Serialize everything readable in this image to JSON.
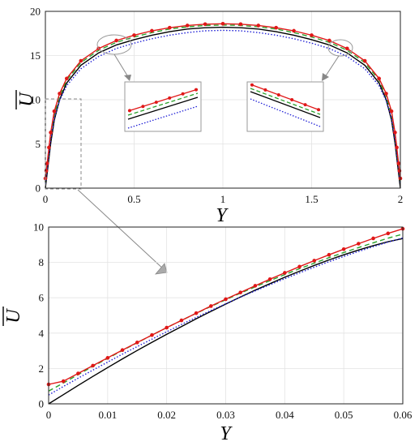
{
  "figure": {
    "top": {
      "type": "line",
      "xlabel": "Y",
      "ylabel": "U",
      "xlim": [
        0,
        2
      ],
      "ylim": [
        0,
        20
      ],
      "xticks": [
        "0",
        "0.5",
        "1",
        "1.5",
        "2"
      ],
      "yticks": [
        "0",
        "5",
        "10",
        "15",
        "20"
      ],
      "grid": true
    },
    "bottom": {
      "type": "line",
      "xlabel": "Y",
      "ylabel": "U",
      "xlim": [
        0,
        0.06
      ],
      "ylim": [
        0,
        10
      ],
      "xticks": [
        "0",
        "0.01",
        "0.02",
        "0.03",
        "0.04",
        "0.05",
        "0.06"
      ],
      "yticks": [
        "0",
        "2",
        "4",
        "6",
        "8",
        "10"
      ],
      "grid": true
    }
  },
  "chart_data": [
    {
      "type": "line",
      "xlabel": "Y",
      "ylabel": "U",
      "xlim": [
        0,
        2
      ],
      "ylim": [
        0,
        20
      ],
      "grid": true,
      "x": [
        0,
        0.005,
        0.01,
        0.02,
        0.03,
        0.05,
        0.08,
        0.12,
        0.2,
        0.3,
        0.4,
        0.5,
        0.6,
        0.7,
        0.8,
        0.9,
        1.0,
        1.1,
        1.2,
        1.3,
        1.4,
        1.5,
        1.6,
        1.7,
        1.8,
        1.88,
        1.92,
        1.95,
        1.97,
        1.98,
        1.99,
        1.995,
        2.0
      ],
      "series": [
        {
          "color": "#000000",
          "style": "solid",
          "marker": "none",
          "values": [
            0,
            0.85,
            1.7,
            3.4,
            5.1,
            7.7,
            10.0,
            11.9,
            13.9,
            15.3,
            16.2,
            16.8,
            17.3,
            17.7,
            18.0,
            18.15,
            18.2,
            18.15,
            18.0,
            17.7,
            17.3,
            16.8,
            16.2,
            15.3,
            13.9,
            11.9,
            10.0,
            7.7,
            5.1,
            3.4,
            1.7,
            0.85,
            0
          ]
        },
        {
          "color": "#2aa02a",
          "style": "dashed",
          "marker": "none",
          "values": [
            0.7,
            1.55,
            2.4,
            4.2,
            5.9,
            8.3,
            10.4,
            12.2,
            14.2,
            15.6,
            16.5,
            17.1,
            17.6,
            18.0,
            18.25,
            18.4,
            18.45,
            18.4,
            18.25,
            18.0,
            17.6,
            17.1,
            16.5,
            15.6,
            14.2,
            12.2,
            10.4,
            8.3,
            5.9,
            4.2,
            2.4,
            1.55,
            0.7
          ]
        },
        {
          "color": "#1f1fd6",
          "style": "dotted",
          "marker": "none",
          "values": [
            0.5,
            1.3,
            2.1,
            3.8,
            5.5,
            7.9,
            9.9,
            11.6,
            13.5,
            14.9,
            15.8,
            16.4,
            16.9,
            17.3,
            17.6,
            17.8,
            17.85,
            17.8,
            17.6,
            17.3,
            16.9,
            16.4,
            15.8,
            14.9,
            13.5,
            11.6,
            9.9,
            7.9,
            5.5,
            3.8,
            2.1,
            1.3,
            0.5
          ]
        },
        {
          "color": "#e01818",
          "style": "solid",
          "marker": "dot",
          "values": [
            1.1,
            1.95,
            2.8,
            4.6,
            6.3,
            8.7,
            10.7,
            12.4,
            14.4,
            15.8,
            16.7,
            17.3,
            17.8,
            18.15,
            18.4,
            18.55,
            18.6,
            18.55,
            18.4,
            18.15,
            17.8,
            17.3,
            16.7,
            15.8,
            14.4,
            12.4,
            10.7,
            8.7,
            6.3,
            4.6,
            2.8,
            1.95,
            1.1
          ]
        }
      ]
    },
    {
      "type": "line",
      "xlabel": "Y",
      "ylabel": "U",
      "xlim": [
        0,
        0.06
      ],
      "ylim": [
        0,
        10
      ],
      "grid": true,
      "x": [
        0,
        0.0025,
        0.005,
        0.0075,
        0.01,
        0.0125,
        0.015,
        0.0175,
        0.02,
        0.0225,
        0.025,
        0.0275,
        0.03,
        0.0325,
        0.035,
        0.0375,
        0.04,
        0.0425,
        0.045,
        0.0475,
        0.05,
        0.0525,
        0.055,
        0.0575,
        0.06
      ],
      "series": [
        {
          "color": "#000000",
          "style": "solid",
          "marker": "none",
          "values": [
            0.0,
            0.52,
            1.04,
            1.55,
            2.05,
            2.54,
            3.02,
            3.48,
            3.93,
            4.37,
            4.81,
            5.23,
            5.64,
            6.04,
            6.43,
            6.8,
            7.16,
            7.5,
            7.83,
            8.14,
            8.43,
            8.7,
            8.95,
            9.17,
            9.35
          ]
        },
        {
          "color": "#2aa02a",
          "style": "dashed",
          "marker": "none",
          "values": [
            0.72,
            1.18,
            1.65,
            2.12,
            2.57,
            3.02,
            3.46,
            3.89,
            4.31,
            4.72,
            5.12,
            5.51,
            5.89,
            6.26,
            6.62,
            6.97,
            7.31,
            7.64,
            7.96,
            8.27,
            8.56,
            8.84,
            9.11,
            9.37,
            9.6
          ]
        },
        {
          "color": "#1f1fd6",
          "style": "dotted",
          "marker": "none",
          "values": [
            0.5,
            0.98,
            1.45,
            1.91,
            2.36,
            2.81,
            3.24,
            3.66,
            4.08,
            4.49,
            4.89,
            5.28,
            5.66,
            6.03,
            6.39,
            6.74,
            7.08,
            7.41,
            7.73,
            8.04,
            8.34,
            8.62,
            8.89,
            9.15,
            9.38
          ]
        },
        {
          "color": "#e01818",
          "style": "solid",
          "marker": "dot",
          "values": [
            1.1,
            1.28,
            1.72,
            2.16,
            2.6,
            3.04,
            3.47,
            3.89,
            4.31,
            4.72,
            5.13,
            5.53,
            5.92,
            6.3,
            6.68,
            7.05,
            7.41,
            7.76,
            8.1,
            8.43,
            8.75,
            9.06,
            9.36,
            9.64,
            9.9
          ]
        }
      ]
    }
  ]
}
